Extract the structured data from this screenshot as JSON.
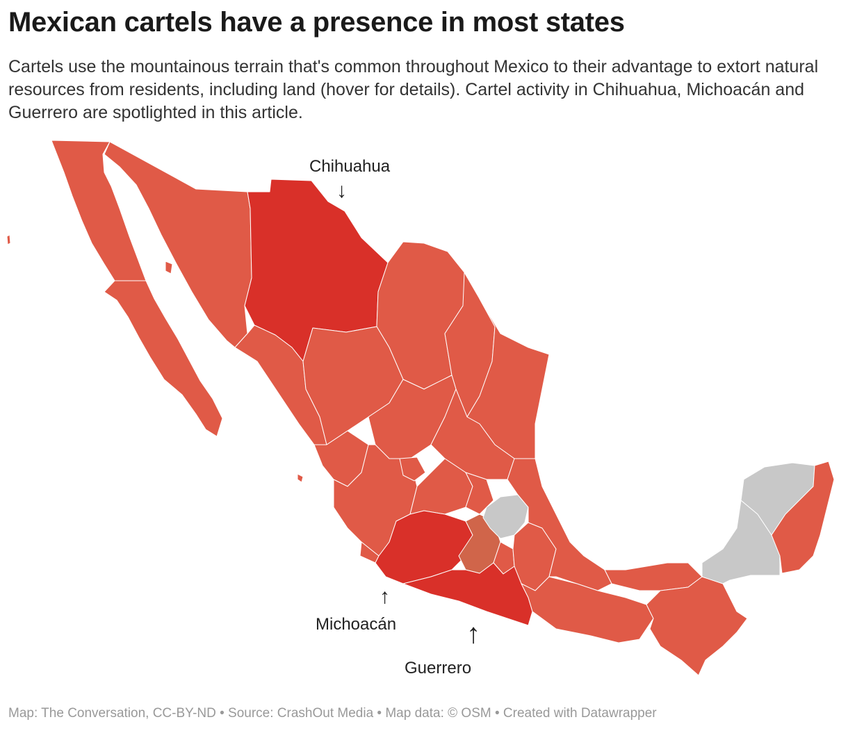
{
  "header": {
    "title": "Mexican cartels have a presence in most states",
    "description": "Cartels use the mountainous terrain that's common throughout Mexico to their advantage to extort natural resources from residents, including land (hover for details). Cartel activity in Chihuahua, Michoacán and Guerrero are spotlighted in this article."
  },
  "colors": {
    "presence": "#e05a47",
    "spotlight": "#d93029",
    "none": "#c8c8c8",
    "other": "#d0654a"
  },
  "annotations": {
    "chihuahua": "Chihuahua",
    "michoacan": "Michoacán",
    "guerrero": "Guerrero"
  },
  "footer": {
    "text": "Map: The Conversation, CC-BY-ND • Source: CrashOut Media • Map data: © OSM  • Created with Datawrapper"
  }
}
